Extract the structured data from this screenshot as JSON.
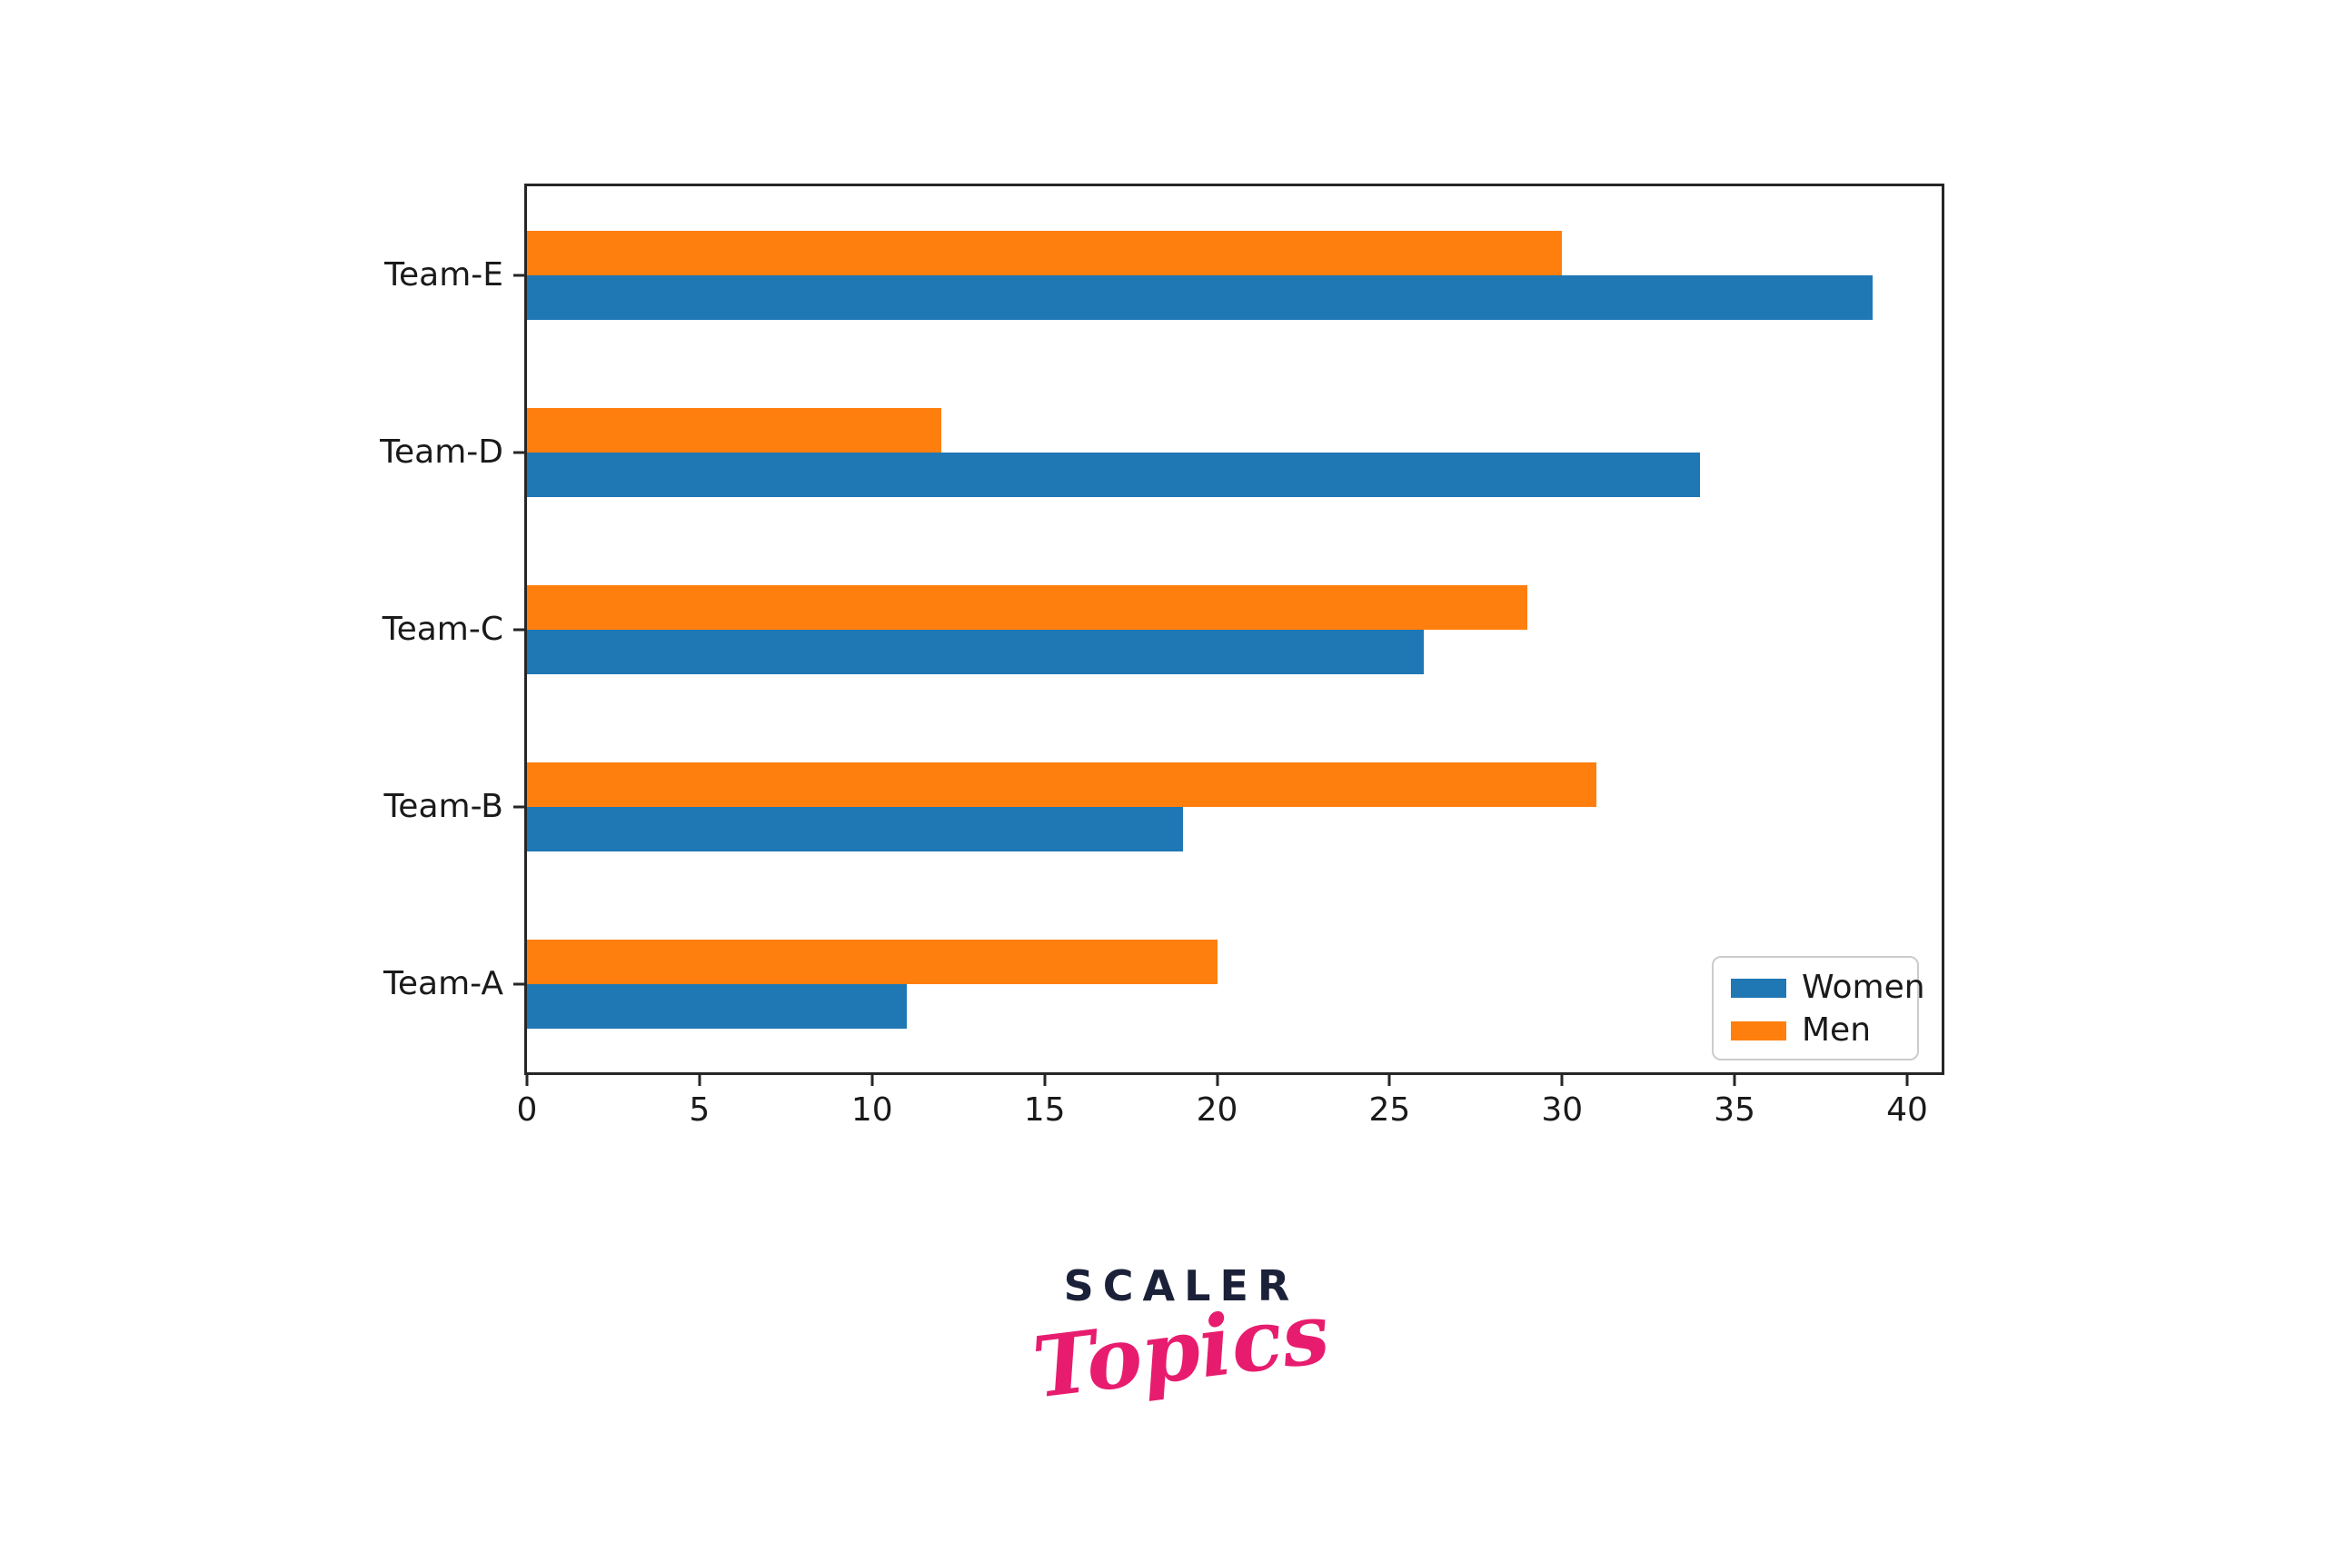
{
  "chart_data": {
    "type": "bar",
    "orientation": "horizontal",
    "title": "",
    "xlabel": "",
    "ylabel": "",
    "categories": [
      "Team-A",
      "Team-B",
      "Team-C",
      "Team-D",
      "Team-E"
    ],
    "series": [
      {
        "name": "Women",
        "color": "#1f77b4",
        "values": [
          11,
          19,
          26,
          34,
          39
        ]
      },
      {
        "name": "Men",
        "color": "#ff7f0e",
        "values": [
          20,
          31,
          29,
          12,
          30
        ]
      }
    ],
    "xlim": [
      0,
      41
    ],
    "xticks": [
      0,
      5,
      10,
      15,
      20,
      25,
      30,
      35,
      40
    ],
    "grid": false,
    "legend_position": "lower right",
    "spine_color": "#262626"
  },
  "logo": {
    "line1": "SCALER",
    "line2": "Topics",
    "line1_color": "#1b2138",
    "line2_color": "#e81c6e"
  }
}
